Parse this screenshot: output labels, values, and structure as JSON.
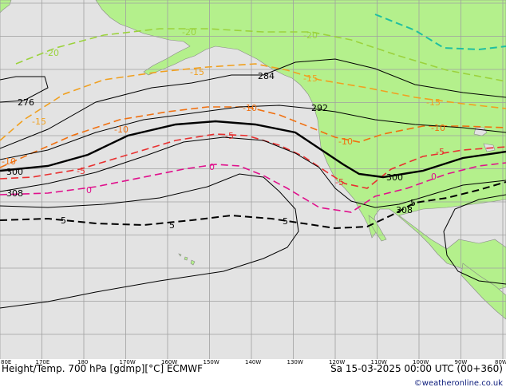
{
  "map": {
    "title": "Height/Temp. 700 hPa [gdmp][°C] ECMWF",
    "valid_time": "Sa 15-03-2025 00:00 UTC (00+360)",
    "credit": "©weatheronline.co.uk",
    "lon_labels": [
      "80E",
      "170E",
      "180",
      "170W",
      "160W",
      "150W",
      "140W",
      "130W",
      "120W",
      "110W",
      "100W",
      "90W",
      "80W"
    ],
    "height_labels": [
      "276",
      "284",
      "292",
      "300",
      "300",
      "308",
      "308"
    ],
    "temp_labels": [
      "-20",
      "-20",
      "-20",
      "-15",
      "-15",
      "-15",
      "-15",
      "-10",
      "-10",
      "-10",
      "-10",
      "-10",
      "-5",
      "-5",
      "-5",
      "-5",
      "0",
      "0",
      "0",
      "5",
      "5",
      "5",
      "5"
    ],
    "colors": {
      "ocean": "#e3e3e3",
      "land": "#b4f08c",
      "grid": "#a0a0a0",
      "height_contour": "#000000",
      "temp_m20": "#9bd23c",
      "temp_m25": "#1fbfa0",
      "temp_m15": "#f0a020",
      "temp_m10": "#f07010",
      "temp_m5": "#e83030",
      "temp_0": "#e0108c",
      "temp_p5": "#000000"
    }
  }
}
